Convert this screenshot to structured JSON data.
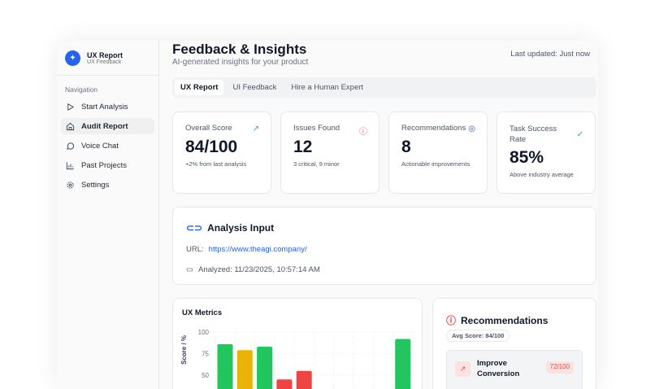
{
  "sidebar": {
    "brand_title": "UX Report",
    "brand_subtitle": "UX Feedback",
    "nav_heading": "Navigation",
    "items": [
      {
        "label": "Start Analysis",
        "icon": "play-icon"
      },
      {
        "label": "Audit Report",
        "icon": "home-icon",
        "active": true
      },
      {
        "label": "Voice Chat",
        "icon": "chat-icon"
      },
      {
        "label": "Past Projects",
        "icon": "bar-chart-icon"
      },
      {
        "label": "Settings",
        "icon": "gear-icon"
      }
    ]
  },
  "header": {
    "title": "Feedback & Insights",
    "subtitle": "AI-generated insights for your product",
    "last_updated": "Last updated: Just now"
  },
  "tabs": [
    {
      "label": "UX Report",
      "active": true
    },
    {
      "label": "UI Feedback"
    },
    {
      "label": "Hire a Human Expert"
    }
  ],
  "kpis": [
    {
      "label": "Overall Score",
      "value": "84/100",
      "sub": "+2% from last analysis",
      "icon": "trending-up-icon",
      "color": "#22c55e"
    },
    {
      "label": "Issues Found",
      "value": "12",
      "sub": "3 critical, 9 minor",
      "icon": "alert-circle-icon",
      "color": "#ef4444"
    },
    {
      "label": "Recommendations",
      "value": "8",
      "sub": "Actionable improvements",
      "icon": "target-icon",
      "color": "#2563eb"
    },
    {
      "label": "Task Success Rate",
      "value": "85%",
      "sub": "Above industry average",
      "icon": "check-circle-icon",
      "color": "#22c55e"
    }
  ],
  "analysis": {
    "title": "Analysis Input",
    "url_label": "URL:",
    "url": "https://www.theagi.company/",
    "analyzed": "Analyzed: 11/23/2025, 10:57:14 AM"
  },
  "chart_data": {
    "type": "bar",
    "title": "UX Metrics",
    "ylabel": "Score / %",
    "yticks": [
      "100",
      "75",
      "50"
    ],
    "ylim_visible": [
      50,
      100
    ],
    "values": [
      86,
      79,
      83,
      45,
      55,
      0,
      0,
      0,
      0,
      92
    ],
    "colors": [
      "#22c55e",
      "#eab308",
      "#22c55e",
      "#ef4444",
      "#ef4444",
      "#22c55e",
      "#22c55e",
      "#22c55e",
      "#22c55e",
      "#22c55e"
    ],
    "grid": true
  },
  "recommendations": {
    "title": "Recommendations",
    "avg": "Avg Score: 84/100",
    "items": [
      {
        "title": "Improve Conversion",
        "score": "72/100",
        "color": "#ef4444"
      }
    ]
  }
}
